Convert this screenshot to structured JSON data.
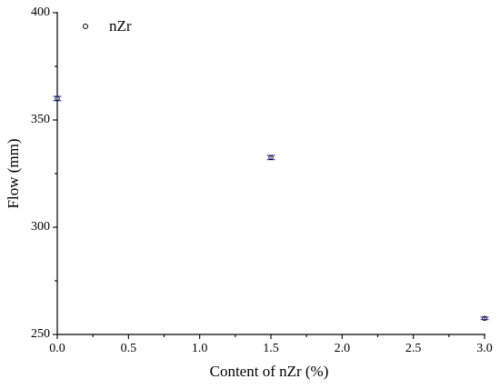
{
  "chart_data": {
    "type": "scatter",
    "xlabel": "Content of nZr (%)",
    "ylabel": "Flow (mm)",
    "xlim": [
      0.0,
      3.0
    ],
    "ylim": [
      250,
      400
    ],
    "x_ticks": [
      0.0,
      0.5,
      1.0,
      1.5,
      2.0,
      2.5,
      3.0
    ],
    "x_tick_labels": [
      "0.0",
      "0.5",
      "1.0",
      "1.5",
      "2.0",
      "2.5",
      "3.0"
    ],
    "y_ticks": [
      250,
      300,
      350,
      400
    ],
    "y_tick_labels": [
      "250",
      "300",
      "350",
      "400"
    ],
    "grid": false,
    "legend_position": "top-left",
    "series": [
      {
        "name": "nZr",
        "marker": "open-circle",
        "color": "#000000",
        "error_bar_color": "#1f1fb4",
        "points": [
          {
            "x": 0.0,
            "y": 360,
            "err": 1
          },
          {
            "x": 1.5,
            "y": 332.5,
            "err": 1
          },
          {
            "x": 3.0,
            "y": 257.5,
            "err": 0.6
          }
        ]
      }
    ]
  }
}
